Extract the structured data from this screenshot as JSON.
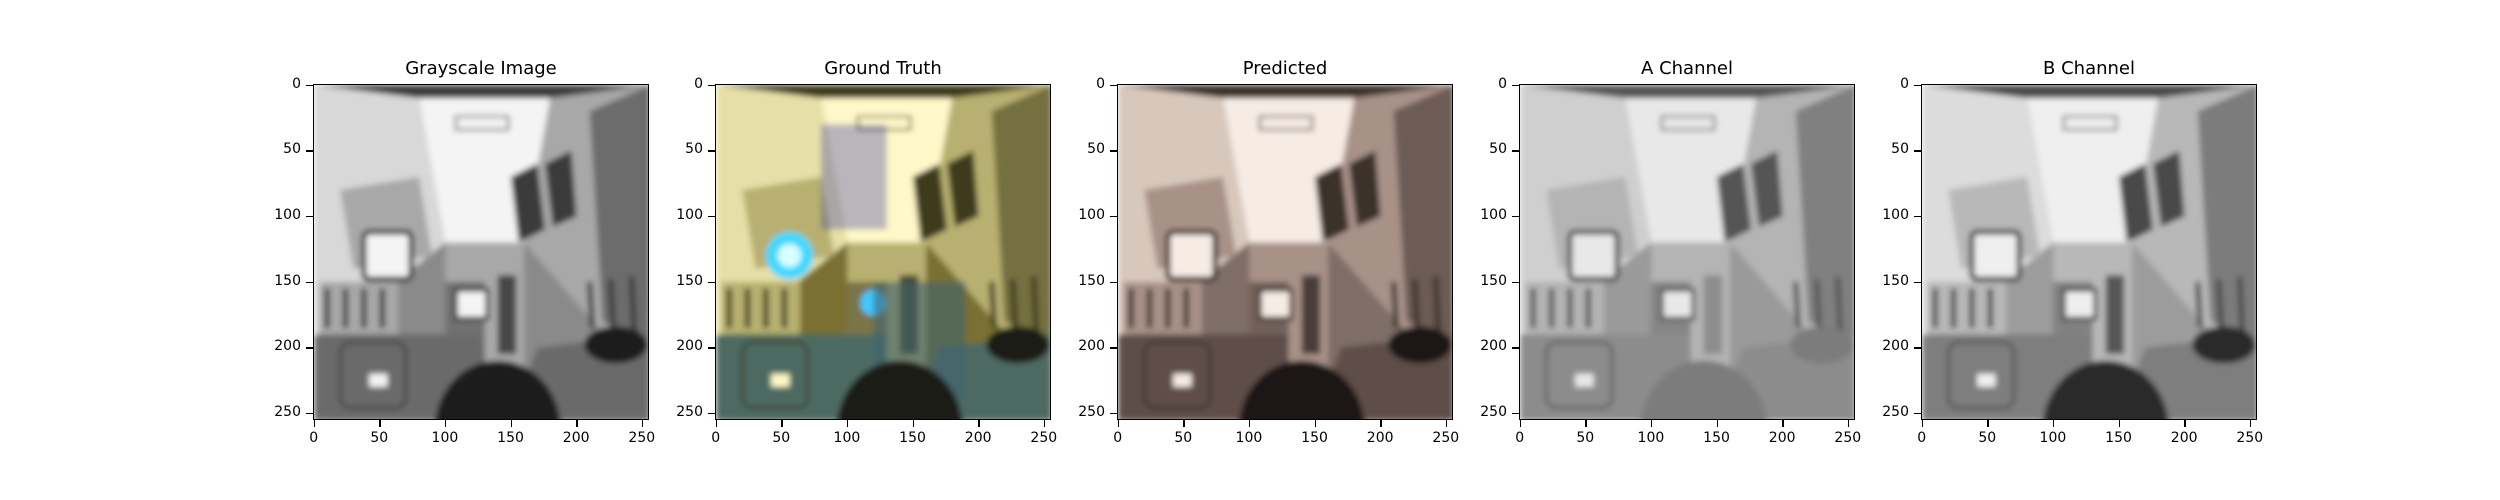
{
  "panels": [
    {
      "title": "Grayscale Image",
      "tone": "gray"
    },
    {
      "title": "Ground Truth",
      "tone": "yellow"
    },
    {
      "title": "Predicted",
      "tone": "brown"
    },
    {
      "title": "A Channel",
      "tone": "agray"
    },
    {
      "title": "B Channel",
      "tone": "bgray"
    }
  ],
  "axis": {
    "yticks": [
      "0",
      "50",
      "100",
      "150",
      "200",
      "250"
    ],
    "xticks": [
      "0",
      "50",
      "100",
      "150",
      "200",
      "250"
    ],
    "range": [
      0,
      256
    ]
  }
}
